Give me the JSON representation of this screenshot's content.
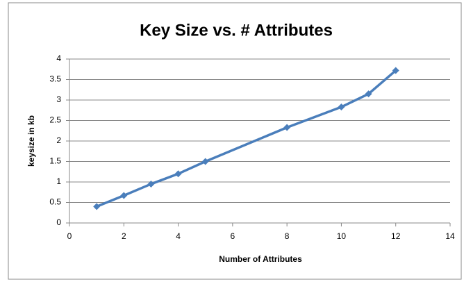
{
  "chart_data": {
    "type": "line",
    "title": "Key Size vs. # Attributes",
    "x_label": "Number of Attributes",
    "y_label": "keysize in kb",
    "x": [
      1,
      2,
      3,
      4,
      5,
      8,
      10,
      11,
      12
    ],
    "series": [
      {
        "name": "keysize",
        "color": "#4a7ebb",
        "values": [
          0.4,
          0.67,
          0.95,
          1.2,
          1.5,
          2.33,
          2.83,
          3.15,
          3.72
        ]
      }
    ],
    "xlim": [
      0,
      14
    ],
    "xticks": [
      0,
      2,
      4,
      6,
      8,
      10,
      12,
      14
    ],
    "ylim": [
      0,
      4
    ],
    "yticks": [
      0,
      0.5,
      1,
      1.5,
      2,
      2.5,
      3,
      3.5,
      4
    ],
    "grid": true
  }
}
